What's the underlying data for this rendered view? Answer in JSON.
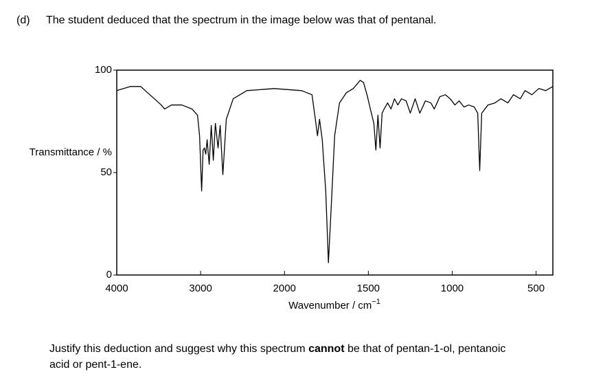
{
  "question": {
    "label": "(d)",
    "text": "The student deduced that the spectrum in the image below was that of pentanal."
  },
  "chart_data": {
    "type": "line",
    "y_label": "Transmittance / %",
    "x_label": "Wavenumber / cm",
    "x_label_superscript": "−1",
    "xlim": [
      4000,
      400
    ],
    "xticks": [
      4000,
      3000,
      2000,
      1500,
      1000,
      500
    ],
    "ylim": [
      0,
      100
    ],
    "yticks": [
      0,
      50,
      100
    ],
    "series": [
      {
        "color": "#000000",
        "x": [
          4000,
          3837,
          3714,
          3633,
          3551,
          3469,
          3429,
          3347,
          3224,
          3102,
          3037,
          3012,
          2988,
          2971,
          2955,
          2939,
          2922,
          2898,
          2873,
          2849,
          2824,
          2792,
          2767,
          2735,
          2694,
          2612,
          2449,
          2122,
          1898,
          1836,
          1816,
          1803,
          1791,
          1775,
          1754,
          1738,
          1721,
          1701,
          1672,
          1631,
          1590,
          1549,
          1529,
          1508,
          1488,
          1467,
          1455,
          1443,
          1430,
          1418,
          1406,
          1385,
          1365,
          1344,
          1324,
          1303,
          1275,
          1250,
          1221,
          1193,
          1160,
          1127,
          1107,
          1074,
          1041,
          1012,
          984,
          959,
          930,
          902,
          869,
          848,
          836,
          824,
          787,
          746,
          709,
          668,
          635,
          594,
          566,
          525,
          484,
          443,
          400
        ],
        "values": [
          90,
          92,
          92,
          89,
          86,
          83,
          81,
          83,
          83,
          81,
          78,
          68,
          41,
          61,
          62,
          59,
          66,
          54,
          73,
          56,
          74,
          62,
          73,
          49,
          76,
          86,
          90,
          91,
          90,
          88,
          76,
          68,
          76,
          66,
          41,
          6,
          34,
          68,
          84,
          89,
          91,
          95,
          94,
          88,
          81,
          74,
          61,
          78,
          62,
          79,
          81,
          84,
          81,
          86,
          83,
          86,
          85,
          79,
          86,
          79,
          85,
          84,
          81,
          87,
          88,
          86,
          83,
          85,
          82,
          83,
          82,
          79,
          51,
          79,
          83,
          84,
          86,
          84,
          88,
          86,
          90,
          88,
          91,
          90,
          92
        ]
      }
    ]
  },
  "prompt": {
    "before": "Justify this deduction and suggest why this spectrum ",
    "bold": "cannot",
    "after": " be that of pentan-1-ol, pentanoic acid or pent-1-ene."
  }
}
